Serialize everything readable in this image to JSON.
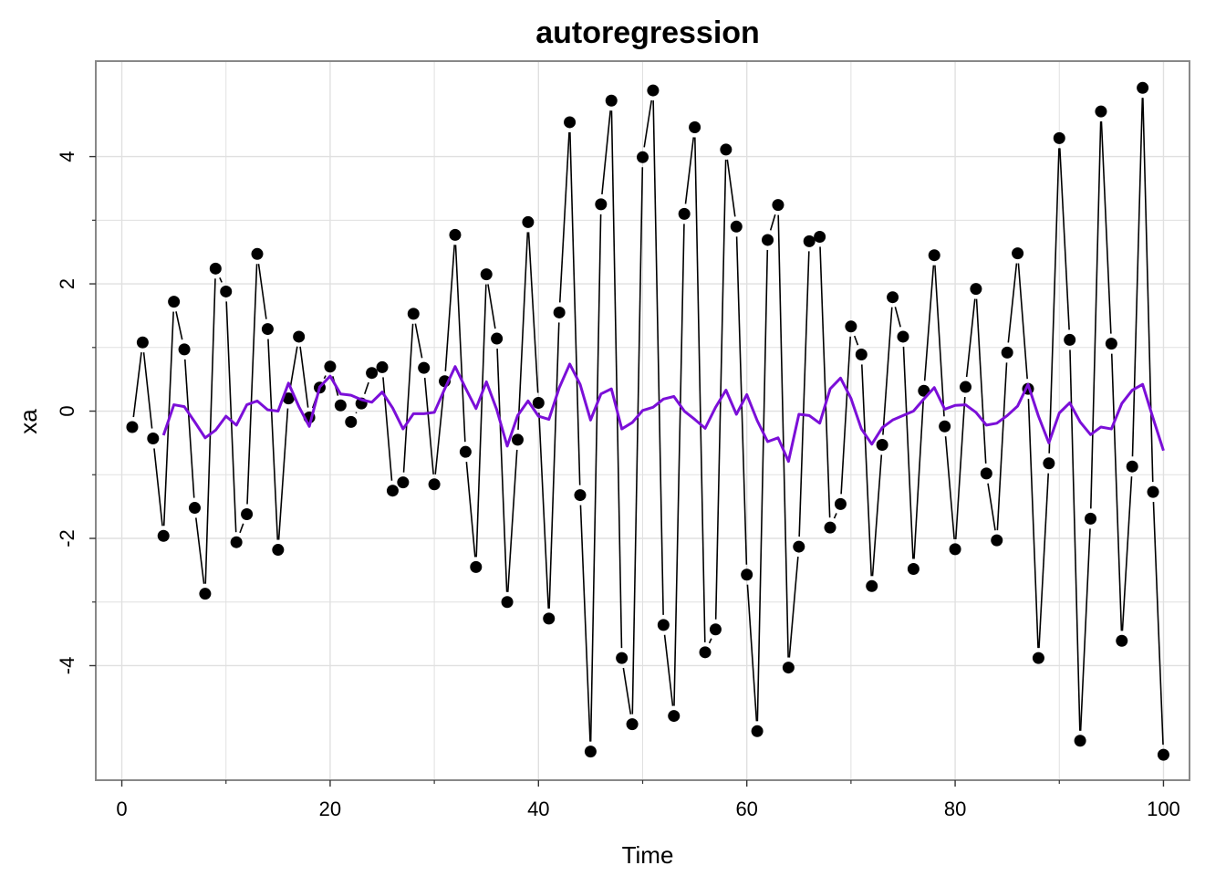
{
  "chart_data": {
    "type": "line",
    "title": "autoregression",
    "xlabel": "Time",
    "ylabel": "xa",
    "xlim": [
      -2.5,
      102.5
    ],
    "ylim": [
      -5.8,
      5.5
    ],
    "x_ticks": [
      0,
      20,
      40,
      60,
      80,
      100
    ],
    "x_tick_labels": [
      "0",
      "20",
      "40",
      "60",
      "80",
      "100"
    ],
    "y_ticks": [
      -4,
      -2,
      0,
      2,
      4
    ],
    "y_tick_labels": [
      "-4",
      "-2",
      "0",
      "2",
      "4"
    ],
    "grid": true,
    "legend": "none",
    "colors": {
      "series_line": "#000000",
      "points": "#000000",
      "smoothed": "#7B0FD8",
      "grid": "#E0E0E0",
      "panel_border": "#888888"
    },
    "series": [
      {
        "style": "line+points",
        "x": [
          1,
          2,
          3,
          4,
          5,
          6,
          7,
          8,
          9,
          10,
          11,
          12,
          13,
          14,
          15,
          16,
          17,
          18,
          19,
          20,
          21,
          22,
          23,
          24,
          25,
          26,
          27,
          28,
          29,
          30,
          31,
          32,
          33,
          34,
          35,
          36,
          37,
          38,
          39,
          40,
          41,
          42,
          43,
          44,
          45,
          46,
          47,
          48,
          49,
          50,
          51,
          52,
          53,
          54,
          55,
          56,
          57,
          58,
          59,
          60,
          61,
          62,
          63,
          64,
          65,
          66,
          67,
          68,
          69,
          70,
          71,
          72,
          73,
          74,
          75,
          76,
          77,
          78,
          79,
          80,
          81,
          82,
          83,
          84,
          85,
          86,
          87,
          88,
          89,
          90,
          91,
          92,
          93,
          94,
          95,
          96,
          97,
          98,
          99,
          100
        ],
        "values": [
          -0.25,
          1.08,
          -0.43,
          -1.96,
          1.72,
          0.97,
          -1.52,
          -2.87,
          2.24,
          1.88,
          -2.06,
          -1.62,
          2.47,
          1.29,
          -2.18,
          0.2,
          1.17,
          -0.1,
          0.37,
          0.7,
          0.09,
          -0.17,
          0.12,
          0.6,
          0.69,
          -1.25,
          -1.12,
          1.53,
          0.68,
          -1.15,
          0.47,
          2.77,
          -0.64,
          -2.45,
          2.15,
          1.14,
          -3.0,
          -0.45,
          2.97,
          0.13,
          -3.26,
          1.55,
          4.54,
          -1.32,
          -5.35,
          3.25,
          4.88,
          -3.88,
          -4.92,
          3.99,
          5.04,
          -3.36,
          -4.79,
          3.1,
          4.46,
          -3.79,
          -3.43,
          4.11,
          2.9,
          -2.57,
          -5.03,
          2.69,
          3.24,
          -4.03,
          -2.13,
          2.67,
          2.74,
          -1.83,
          -1.46,
          1.33,
          0.89,
          -2.75,
          -0.53,
          1.79,
          1.17,
          -2.48,
          0.32,
          2.45,
          -0.24,
          -2.17,
          0.38,
          1.92,
          -0.98,
          -2.03,
          0.92,
          2.48,
          0.35,
          -3.88,
          -0.82,
          4.29,
          1.12,
          -5.18,
          -1.69,
          4.71,
          1.06,
          -3.61,
          -0.87,
          5.08,
          -1.27,
          -5.4
        ]
      },
      {
        "style": "line",
        "x": [
          4,
          5,
          6,
          7,
          8,
          9,
          10,
          11,
          12,
          13,
          14,
          15,
          16,
          17,
          18,
          19,
          20,
          21,
          22,
          23,
          24,
          25,
          26,
          27,
          28,
          29,
          30,
          31,
          32,
          33,
          34,
          35,
          36,
          37,
          38,
          39,
          40,
          41,
          42,
          43,
          44,
          45,
          46,
          47,
          48,
          49,
          50,
          51,
          52,
          53,
          54,
          55,
          56,
          57,
          58,
          59,
          60,
          61,
          62,
          63,
          64,
          65,
          66,
          67,
          68,
          69,
          70,
          71,
          72,
          73,
          74,
          75,
          76,
          77,
          78,
          79,
          80,
          81,
          82,
          83,
          84,
          85,
          86,
          87,
          88,
          89,
          90,
          91,
          92,
          93,
          94,
          95,
          96,
          97,
          98,
          99,
          100
        ],
        "values": [
          -0.38,
          0.1,
          0.07,
          -0.17,
          -0.42,
          -0.3,
          -0.08,
          -0.22,
          0.1,
          0.16,
          0.02,
          0.0,
          0.44,
          0.07,
          -0.24,
          0.38,
          0.55,
          0.27,
          0.25,
          0.18,
          0.14,
          0.3,
          0.05,
          -0.28,
          -0.04,
          -0.04,
          -0.02,
          0.35,
          0.7,
          0.36,
          0.04,
          0.46,
          0.02,
          -0.55,
          -0.07,
          0.16,
          -0.08,
          -0.13,
          0.37,
          0.74,
          0.42,
          -0.14,
          0.27,
          0.35,
          -0.28,
          -0.18,
          0.01,
          0.06,
          0.19,
          0.23,
          0.0,
          -0.13,
          -0.27,
          0.06,
          0.33,
          -0.05,
          0.26,
          -0.15,
          -0.48,
          -0.42,
          -0.79,
          -0.05,
          -0.07,
          -0.19,
          0.35,
          0.52,
          0.2,
          -0.28,
          -0.52,
          -0.26,
          -0.14,
          -0.07,
          0.0,
          0.19,
          0.37,
          0.03,
          0.09,
          0.1,
          -0.02,
          -0.22,
          -0.19,
          -0.07,
          0.08,
          0.42,
          -0.08,
          -0.5,
          -0.03,
          0.13,
          -0.17,
          -0.37,
          -0.25,
          -0.28,
          0.12,
          0.33,
          0.42,
          -0.11,
          -0.62
        ]
      }
    ]
  }
}
